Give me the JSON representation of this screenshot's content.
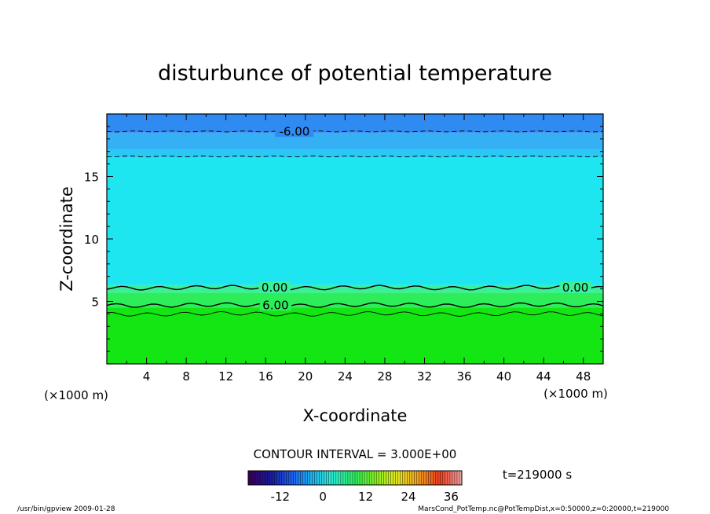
{
  "chart_data": {
    "type": "heatmap",
    "title": "disturbunce of potential temperature",
    "xlabel": "X-coordinate",
    "ylabel": "Z-coordinate",
    "x_unit_left": "(×1000 m)",
    "x_unit_right": "(×1000 m)",
    "xlim": [
      0,
      50
    ],
    "ylim": [
      0,
      20
    ],
    "x_ticks": [
      "4",
      "8",
      "12",
      "16",
      "20",
      "24",
      "28",
      "32",
      "36",
      "40",
      "44",
      "48"
    ],
    "x_tick_values": [
      4,
      8,
      12,
      16,
      20,
      24,
      28,
      32,
      36,
      40,
      44,
      48
    ],
    "y_ticks": [
      "5",
      "10",
      "15"
    ],
    "y_tick_values": [
      5,
      10,
      15
    ],
    "regions": [
      {
        "z_from": 0,
        "z_to": 4.5,
        "value": 5,
        "color": "#14e614"
      },
      {
        "z_from": 4.5,
        "z_to": 5.7,
        "value": 2,
        "color": "#2dee5a"
      },
      {
        "z_from": 5.7,
        "z_to": 6.3,
        "value": 1,
        "color": "#3bf09a"
      },
      {
        "z_from": 6.3,
        "z_to": 16.5,
        "value": -1,
        "color": "#1ee6f0"
      },
      {
        "z_from": 16.5,
        "z_to": 17.2,
        "value": -3,
        "color": "#2cc8f5"
      },
      {
        "z_from": 17.2,
        "z_to": 18.5,
        "value": -5,
        "color": "#35b0f5"
      },
      {
        "z_from": 18.5,
        "z_to": 20,
        "value": -7,
        "color": "#2f8af2"
      }
    ],
    "contours": [
      {
        "value": -6.0,
        "label": "-6.00",
        "z": 18.6,
        "style": "dashed",
        "label_x": 18.9
      },
      {
        "value": -3.0,
        "label": "",
        "z": 16.6,
        "style": "dashed"
      },
      {
        "value": 0.0,
        "label": "0.00",
        "z": 6.1,
        "style": "solid",
        "label_x": [
          16.9,
          47.2
        ]
      },
      {
        "value": 6.0,
        "label": "6.00",
        "z": 4.7,
        "style": "solid",
        "label_x": 17.0
      },
      {
        "value": 9.0,
        "label": "",
        "z": 4.0,
        "style": "solid"
      }
    ],
    "contour_interval_text": "CONTOUR INTERVAL = 3.000E+00",
    "time_text": "t=219000 s",
    "colorbar": {
      "tick_labels": [
        "-12",
        "0",
        "12",
        "24",
        "36"
      ],
      "tick_values": [
        -12,
        0,
        12,
        24,
        36
      ],
      "range": [
        -21,
        39
      ],
      "colors": [
        "#3a0060",
        "#1a1aa0",
        "#1f5ef0",
        "#1fb8f0",
        "#2ef0d0",
        "#2ef060",
        "#8af020",
        "#e8e820",
        "#f0a020",
        "#f04020",
        "#f0a0a0"
      ]
    }
  },
  "footer": {
    "left": "/usr/bin/gpview   2009-01-28",
    "right": "MarsCond_PotTemp.nc@PotTempDist,x=0:50000,z=0:20000,t=219000"
  }
}
